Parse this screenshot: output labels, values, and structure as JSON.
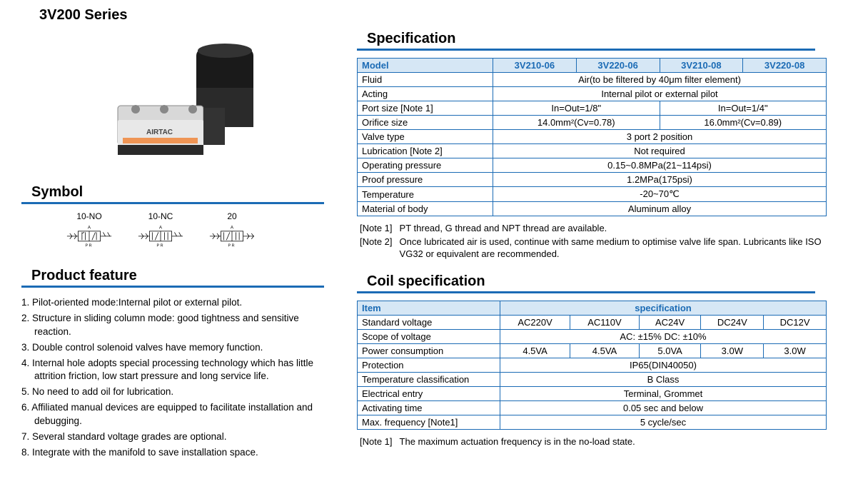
{
  "page": {
    "title": "3V200 Series"
  },
  "colors": {
    "accent": "#1b6bb5",
    "header_bg": "#d6e7f5",
    "text": "#000000",
    "background": "#ffffff"
  },
  "left": {
    "symbol_heading": "Symbol",
    "symbols": [
      {
        "label": "10-NO"
      },
      {
        "label": "10-NC"
      },
      {
        "label": "20"
      }
    ],
    "feature_heading": "Product feature",
    "features": [
      "1. Pilot-oriented mode:Internal pilot or external pilot.",
      "2. Structure in sliding column mode: good tightness and sensitive reaction.",
      "3. Double control solenoid valves have memory function.",
      "4. Internal hole adopts special processing technology which has  little attrition friction, low start pressure and long service life.",
      "5. No need to add oil for lubrication.",
      "6. Affiliated manual devices are equipped to facilitate  installation and debugging.",
      "7. Several standard voltage grades are optional.",
      "8. Integrate with the manifold to save installation space."
    ]
  },
  "spec": {
    "heading": "Specification",
    "header_label": "Model",
    "models": [
      "3V210-06",
      "3V220-06",
      "3V210-08",
      "3V220-08"
    ],
    "rows": [
      {
        "label": "Fluid",
        "cells": [
          {
            "span": 4,
            "text": "Air(to be filtered by 40μm filter element)"
          }
        ]
      },
      {
        "label": "Acting",
        "cells": [
          {
            "span": 4,
            "text": "Internal pilot or external pilot"
          }
        ]
      },
      {
        "label": "Port size  [Note 1]",
        "cells": [
          {
            "span": 2,
            "text": "In=Out=1/8\""
          },
          {
            "span": 2,
            "text": "In=Out=1/4\""
          }
        ]
      },
      {
        "label": "Orifice size",
        "cells": [
          {
            "span": 2,
            "text": "14.0mm²(Cv=0.78)"
          },
          {
            "span": 2,
            "text": "16.0mm²(Cv=0.89)"
          }
        ]
      },
      {
        "label": "Valve type",
        "cells": [
          {
            "span": 4,
            "text": "3 port 2 position"
          }
        ]
      },
      {
        "label": "Lubrication  [Note 2]",
        "cells": [
          {
            "span": 4,
            "text": "Not required"
          }
        ]
      },
      {
        "label": "Operating pressure",
        "cells": [
          {
            "span": 4,
            "text": "0.15~0.8MPa(21~114psi)"
          }
        ]
      },
      {
        "label": "Proof pressure",
        "cells": [
          {
            "span": 4,
            "text": "1.2MPa(175psi)"
          }
        ]
      },
      {
        "label": "Temperature",
        "cells": [
          {
            "span": 4,
            "text": "-20~70℃"
          }
        ]
      },
      {
        "label": "Material of body",
        "cells": [
          {
            "span": 4,
            "text": "Aluminum alloy"
          }
        ]
      }
    ],
    "notes": [
      {
        "tag": "[Note 1]",
        "text": "PT thread, G thread and NPT thread are available."
      },
      {
        "tag": "[Note 2]",
        "text": "Once lubricated air is used, continue with same medium to optimise  valve life span. Lubricants like ISO VG32 or equivalent are recommended."
      }
    ]
  },
  "coil": {
    "heading": "Coil specification",
    "header_item": "Item",
    "header_spec": "specification",
    "rows": [
      {
        "label": "Standard voltage",
        "cells": [
          {
            "span": 1,
            "text": "AC220V"
          },
          {
            "span": 1,
            "text": "AC110V"
          },
          {
            "span": 1,
            "text": "AC24V"
          },
          {
            "span": 1,
            "text": "DC24V"
          },
          {
            "span": 1,
            "text": "DC12V"
          }
        ]
      },
      {
        "label": "Scope of voltage",
        "cells": [
          {
            "span": 5,
            "text": "AC: ±15%      DC: ±10%"
          }
        ]
      },
      {
        "label": "Power consumption",
        "cells": [
          {
            "span": 1,
            "text": "4.5VA"
          },
          {
            "span": 1,
            "text": "4.5VA"
          },
          {
            "span": 1,
            "text": "5.0VA"
          },
          {
            "span": 1,
            "text": "3.0W"
          },
          {
            "span": 1,
            "text": "3.0W"
          }
        ]
      },
      {
        "label": "Protection",
        "cells": [
          {
            "span": 5,
            "text": "IP65(DIN40050)"
          }
        ]
      },
      {
        "label": "Temperature classification",
        "cells": [
          {
            "span": 5,
            "text": "B Class"
          }
        ]
      },
      {
        "label": "Electrical entry",
        "cells": [
          {
            "span": 5,
            "text": "Terminal, Grommet"
          }
        ]
      },
      {
        "label": "Activating time",
        "cells": [
          {
            "span": 5,
            "text": "0.05 sec and below"
          }
        ]
      },
      {
        "label": "Max. frequency [Note1]",
        "cells": [
          {
            "span": 5,
            "text": "5 cycle/sec"
          }
        ]
      }
    ],
    "notes": [
      {
        "tag": "[Note 1]",
        "text": "The maximum actuation frequency is in the no-load state."
      }
    ]
  }
}
